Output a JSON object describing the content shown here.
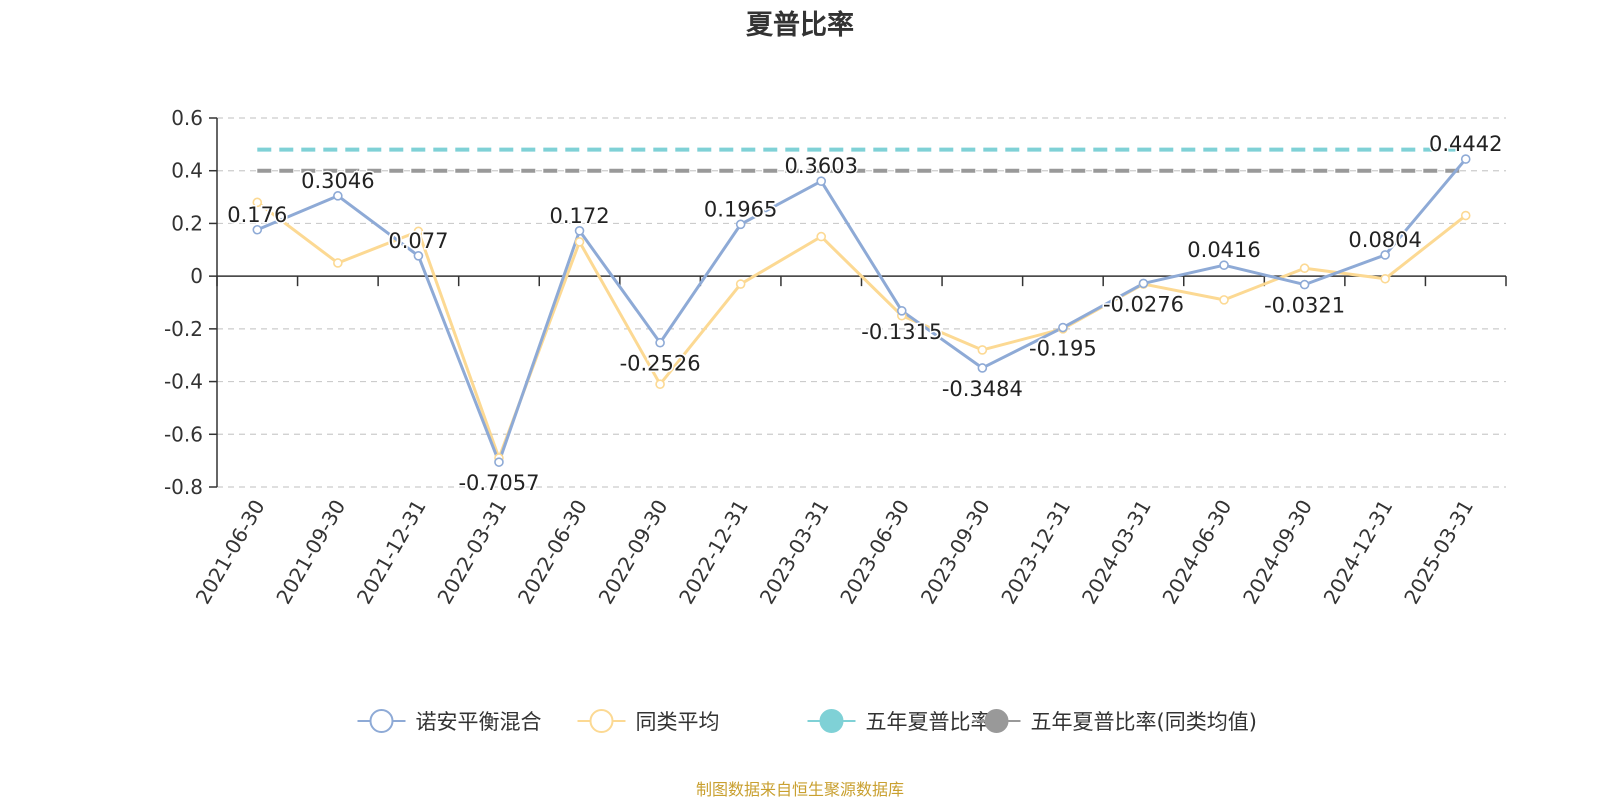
{
  "chart_data": {
    "type": "line",
    "title": "夏普比率",
    "xlabel": "",
    "ylabel": "",
    "categories": [
      "2021-06-30",
      "2021-09-30",
      "2021-12-31",
      "2022-03-31",
      "2022-06-30",
      "2022-09-30",
      "2022-12-31",
      "2023-03-31",
      "2023-06-30",
      "2023-09-30",
      "2023-12-31",
      "2024-03-31",
      "2024-06-30",
      "2024-09-30",
      "2024-12-31",
      "2025-03-31"
    ],
    "ylim": [
      -0.8,
      0.6
    ],
    "yticks": [
      "0.6",
      "0.4",
      "0.2",
      "0",
      "-0.2",
      "-0.4",
      "-0.6",
      "-0.8"
    ],
    "ytick_values": [
      0.6,
      0.4,
      0.2,
      0,
      -0.2,
      -0.4,
      -0.6,
      -0.8
    ],
    "grid": true,
    "legend_position": "bottom",
    "series": [
      {
        "name": "诺安平衡混合",
        "color": "#8eaad6",
        "values": [
          0.176,
          0.3046,
          0.077,
          -0.7057,
          0.172,
          -0.2526,
          0.1965,
          0.3603,
          -0.1315,
          -0.3484,
          -0.195,
          -0.0276,
          0.0416,
          -0.0321,
          0.0804,
          0.4442
        ],
        "labels": [
          "0.176",
          "0.3046",
          "0.077",
          "-0.7057",
          "0.172",
          "-0.2526",
          "0.1965",
          "0.3603",
          "-0.1315",
          "-0.3484",
          "-0.195",
          "-0.0276",
          "0.0416",
          "-0.0321",
          "0.0804",
          "0.4442"
        ]
      },
      {
        "name": "同类平均",
        "color": "#fcd993",
        "values": [
          0.28,
          0.05,
          0.17,
          -0.69,
          0.13,
          -0.41,
          -0.03,
          0.15,
          -0.15,
          -0.28,
          -0.2,
          -0.03,
          -0.09,
          0.03,
          -0.01,
          0.23
        ]
      },
      {
        "name": "五年夏普比率",
        "color": "#7fd1d6",
        "constant": 0.48
      },
      {
        "name": "五年夏普比率(同类均值)",
        "color": "#999999",
        "constant": 0.4
      }
    ]
  },
  "source_text": "制图数据来自恒生聚源数据库"
}
